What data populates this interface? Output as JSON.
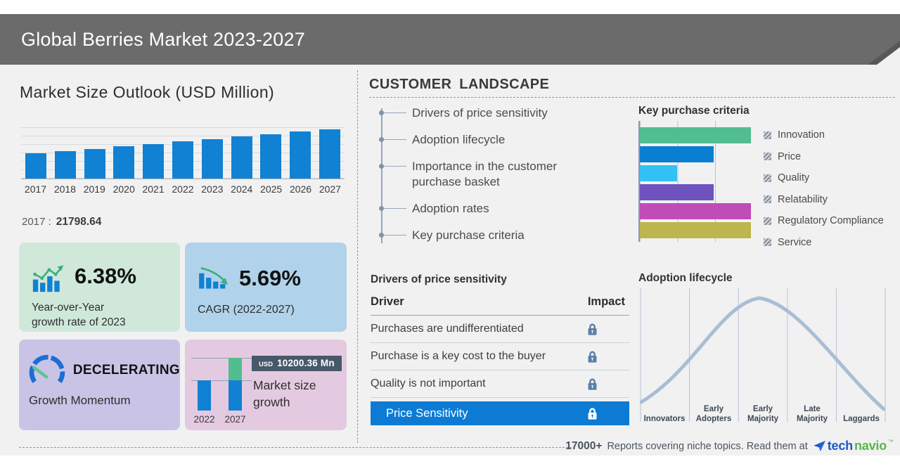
{
  "header": {
    "title": "Global Berries Market 2023-2027"
  },
  "left_panel": {
    "chart_title": "Market Size Outlook (USD Million)",
    "base_year_label": "2017 :",
    "base_year_value": "21798.64",
    "yoy_box": {
      "value": "6.38%",
      "line1": "Year-over-Year",
      "line2": "growth rate of 2023"
    },
    "cagr_box": {
      "value": "5.69%",
      "label": "CAGR (2022-2027)"
    },
    "momentum_box": {
      "status": "DECELERATING",
      "label": "Growth Momentum"
    },
    "growth_box": {
      "badge_currency": "USD",
      "badge_value": "10200.36 Mn",
      "label_line1": "Market size",
      "label_line2": "growth",
      "year_start": "2022",
      "year_end": "2027"
    }
  },
  "right_panel": {
    "section_title": "CUSTOMER LANDSCAPE",
    "landscape_items": [
      "Drivers of price sensitivity",
      "Adoption lifecycle",
      "Importance in the customer purchase basket",
      "Adoption rates",
      "Key purchase criteria"
    ],
    "purchase_criteria_title": "Key purchase criteria",
    "price_table": {
      "title": "Drivers of price sensitivity",
      "col_driver": "Driver",
      "col_impact": "Impact",
      "rows": [
        "Purchases are undifferentiated",
        "Purchase is a key cost to the buyer",
        "Quality is not important"
      ],
      "highlight_row": "Price Sensitivity"
    },
    "lifecycle_title": "Adoption lifecycle"
  },
  "footer": {
    "count": "17000+",
    "text": "Reports covering niche topics. Read them at",
    "brand_blue": "tech",
    "brand_green": "navio",
    "brand_tm": "™"
  },
  "colors": {
    "header_bg": "#6b6b6b",
    "page_bg": "#f1f1f2",
    "primary_bar_blue": "#1081d3",
    "accent_green": "#52bd8f",
    "yoy_box_bg": "#cfe8da",
    "cagr_box_bg": "#b0d3eb",
    "momentum_box_bg": "#c9c4e5",
    "growth_box_bg": "#e4cae0",
    "badge_bg": "#47586a",
    "highlight_row_bg": "#0d7bd4",
    "lock_icon": "#5b7fa6",
    "dashed_line": "#7f99b6",
    "lifecycle_curve": "#a9bdd6",
    "brand_blue": "#1b58c9",
    "brand_green": "#55b948"
  },
  "chart_data": [
    {
      "id": "market_size_outlook",
      "type": "bar",
      "title": "Market Size Outlook (USD Million)",
      "categories": [
        "2017",
        "2018",
        "2019",
        "2020",
        "2021",
        "2022",
        "2023",
        "2024",
        "2025",
        "2026",
        "2027"
      ],
      "values": [
        21798.64,
        23700,
        25500,
        27700,
        29700,
        31900,
        33940,
        35900,
        37900,
        40000,
        42100
      ],
      "ylabel": "USD Million",
      "grid": true,
      "annotation": "2017 : 21798.64"
    },
    {
      "id": "market_size_growth",
      "type": "bar",
      "categories": [
        "2022",
        "2027"
      ],
      "values": [
        31900,
        42100
      ],
      "annotation": "USD 10200.36 Mn incremental growth 2022-2027"
    },
    {
      "id": "key_purchase_criteria",
      "type": "bar",
      "orientation": "horizontal",
      "title": "Key purchase criteria",
      "categories": [
        "Innovation",
        "Price",
        "Quality",
        "Relatability",
        "Regulatory Compliance",
        "Service"
      ],
      "values": [
        3,
        2,
        1,
        2,
        3,
        3
      ],
      "xlim": [
        0,
        3
      ],
      "colors": [
        "#52bd8f",
        "#0a7fd1",
        "#33c1f5",
        "#6e52be",
        "#c04cb8",
        "#bdb54d"
      ],
      "legend_position": "right"
    },
    {
      "id": "adoption_lifecycle",
      "type": "line",
      "title": "Adoption lifecycle",
      "categories": [
        "Innovators",
        "Early Adopters",
        "Early Majority",
        "Late Majority",
        "Laggards"
      ],
      "shape": "bell curve peaking in Early Majority",
      "grid": true
    }
  ]
}
